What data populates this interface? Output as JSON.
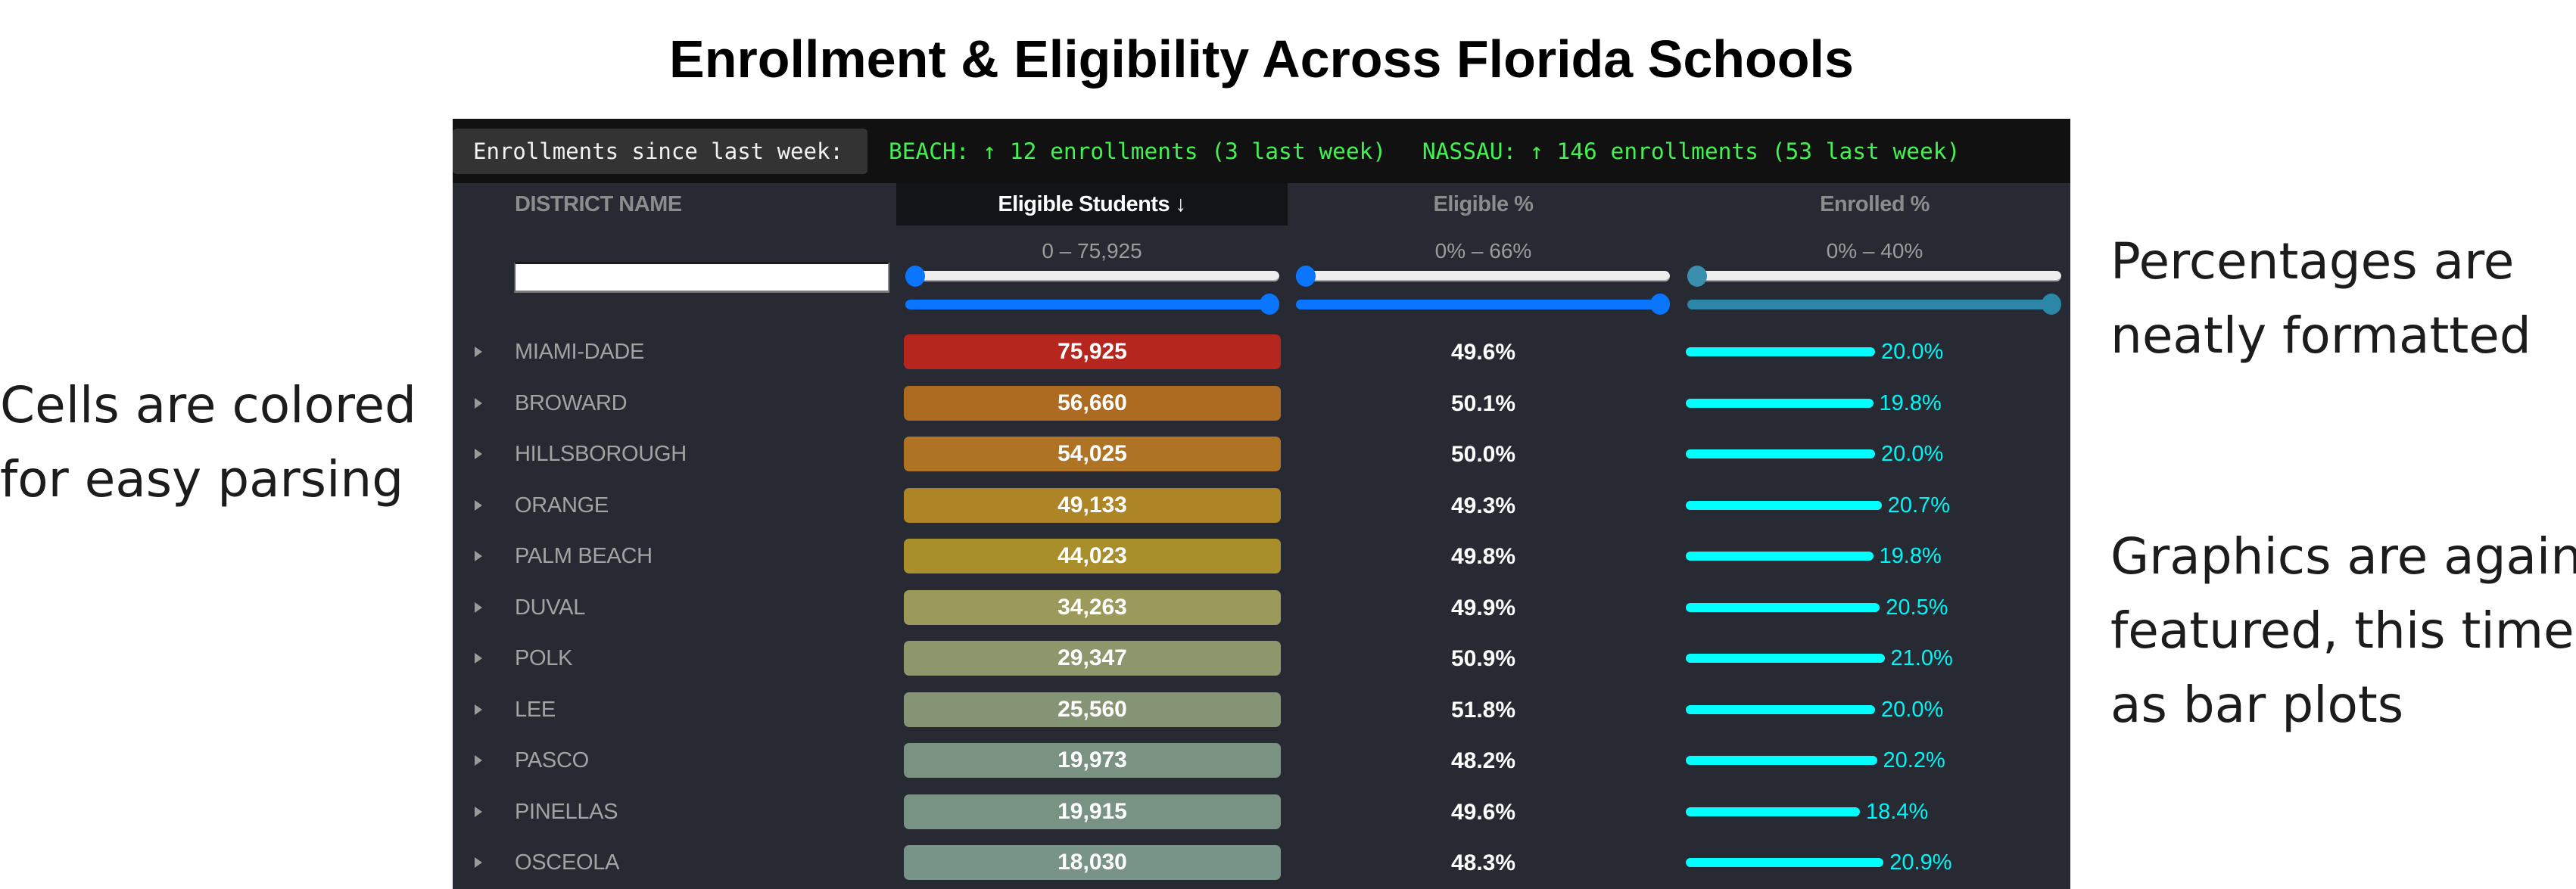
{
  "title": "Enrollment & Eligibility Across Florida Schools",
  "annotations": {
    "left": "Cells are colored\nfor easy parsing",
    "right_top": "Percentages are\nneatly formatted",
    "right_bottom": "Graphics are again\nfeatured, this time\nas bar plots"
  },
  "ticker": {
    "label": "Enrollments since last week:",
    "items": [
      "BEACH: ↑ 12 enrollments (3 last week)",
      "NASSAU: ↑ 146 enrollments (53 last week)"
    ],
    "color": "#42f250"
  },
  "table": {
    "columns": {
      "name": "DISTRICT NAME",
      "eligible_students": "Eligible Students ↓",
      "eligible_pct": "Eligible %",
      "enrolled_pct": "Enrolled %"
    },
    "filters": {
      "name_value": "",
      "eligible_students_range": "0 – 75,925",
      "eligible_pct_range": "0% – 66%",
      "enrolled_pct_range": "0% – 40%",
      "eligible_students_slider": {
        "min": 0,
        "max": 75925,
        "low": 0,
        "high": 75925
      },
      "eligible_pct_slider": {
        "min": 0,
        "max": 66,
        "low": 0,
        "high": 66
      },
      "enrolled_pct_slider": {
        "min": 0,
        "max": 40,
        "low": 0,
        "high": 40
      }
    },
    "slider_colors": {
      "primary": "#0a75ff",
      "enrolled": "#2c86a8",
      "enrolled_thumb_top": "#3a8fae"
    },
    "enrolled_bar_color": "#00ffff",
    "enrolled_max_pct": 40,
    "rows": [
      {
        "name": "MIAMI-DADE",
        "eligible_students": "75,925",
        "eligible_pct": "49.6%",
        "enrolled_pct": 20.0,
        "enrolled_label": "20.0%",
        "color": "#b5261e"
      },
      {
        "name": "BROWARD",
        "eligible_students": "56,660",
        "eligible_pct": "50.1%",
        "enrolled_pct": 19.8,
        "enrolled_label": "19.8%",
        "color": "#ad6b22"
      },
      {
        "name": "HILLSBOROUGH",
        "eligible_students": "54,025",
        "eligible_pct": "50.0%",
        "enrolled_pct": 20.0,
        "enrolled_label": "20.0%",
        "color": "#ae7424"
      },
      {
        "name": "ORANGE",
        "eligible_students": "49,133",
        "eligible_pct": "49.3%",
        "enrolled_pct": 20.7,
        "enrolled_label": "20.7%",
        "color": "#ad8426"
      },
      {
        "name": "PALM BEACH",
        "eligible_students": "44,023",
        "eligible_pct": "49.8%",
        "enrolled_pct": 19.8,
        "enrolled_label": "19.8%",
        "color": "#a88f2c"
      },
      {
        "name": "DUVAL",
        "eligible_students": "34,263",
        "eligible_pct": "49.9%",
        "enrolled_pct": 20.5,
        "enrolled_label": "20.5%",
        "color": "#9c9a5a"
      },
      {
        "name": "POLK",
        "eligible_students": "29,347",
        "eligible_pct": "50.9%",
        "enrolled_pct": 21.0,
        "enrolled_label": "21.0%",
        "color": "#8e976c"
      },
      {
        "name": "LEE",
        "eligible_students": "25,560",
        "eligible_pct": "51.8%",
        "enrolled_pct": 20.0,
        "enrolled_label": "20.0%",
        "color": "#859474"
      },
      {
        "name": "PASCO",
        "eligible_students": "19,973",
        "eligible_pct": "48.2%",
        "enrolled_pct": 20.2,
        "enrolled_label": "20.2%",
        "color": "#7a9282"
      },
      {
        "name": "PINELLAS",
        "eligible_students": "19,915",
        "eligible_pct": "49.6%",
        "enrolled_pct": 18.4,
        "enrolled_label": "18.4%",
        "color": "#789284"
      },
      {
        "name": "OSCEOLA",
        "eligible_students": "18,030",
        "eligible_pct": "48.3%",
        "enrolled_pct": 20.9,
        "enrolled_label": "20.9%",
        "color": "#789387"
      }
    ]
  }
}
